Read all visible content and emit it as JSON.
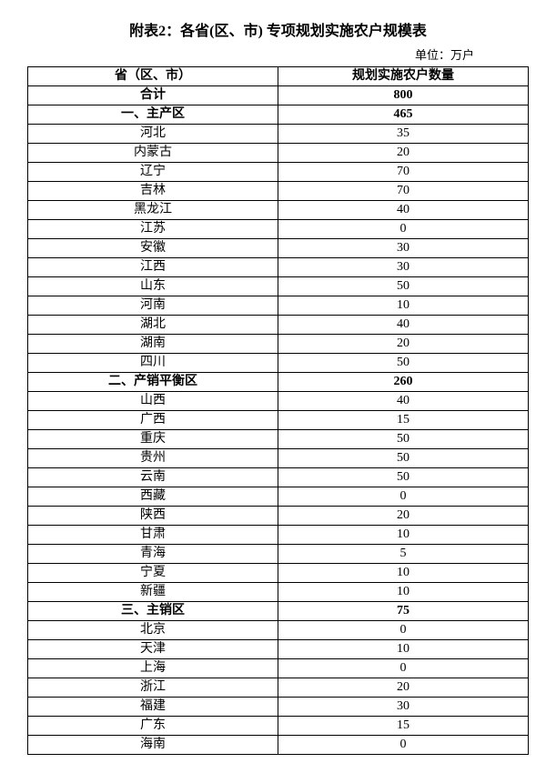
{
  "title": "附表2：各省(区、市) 专项规划实施农户规模表",
  "unit": "单位：万户",
  "header": {
    "col1": "省（区、市）",
    "col2": "规划实施农户数量"
  },
  "rows": [
    {
      "label": "合计",
      "value": "800",
      "bold": true
    },
    {
      "label": "一、主产区",
      "value": "465",
      "bold": true
    },
    {
      "label": "河北",
      "value": "35",
      "bold": false
    },
    {
      "label": "内蒙古",
      "value": "20",
      "bold": false
    },
    {
      "label": "辽宁",
      "value": "70",
      "bold": false
    },
    {
      "label": "吉林",
      "value": "70",
      "bold": false
    },
    {
      "label": "黑龙江",
      "value": "40",
      "bold": false
    },
    {
      "label": "江苏",
      "value": "0",
      "bold": false
    },
    {
      "label": "安徽",
      "value": "30",
      "bold": false
    },
    {
      "label": "江西",
      "value": "30",
      "bold": false
    },
    {
      "label": "山东",
      "value": "50",
      "bold": false
    },
    {
      "label": "河南",
      "value": "10",
      "bold": false
    },
    {
      "label": "湖北",
      "value": "40",
      "bold": false
    },
    {
      "label": "湖南",
      "value": "20",
      "bold": false
    },
    {
      "label": "四川",
      "value": "50",
      "bold": false
    },
    {
      "label": "二、产销平衡区",
      "value": "260",
      "bold": true
    },
    {
      "label": "山西",
      "value": "40",
      "bold": false
    },
    {
      "label": "广西",
      "value": "15",
      "bold": false
    },
    {
      "label": "重庆",
      "value": "50",
      "bold": false
    },
    {
      "label": "贵州",
      "value": "50",
      "bold": false
    },
    {
      "label": "云南",
      "value": "50",
      "bold": false
    },
    {
      "label": "西藏",
      "value": "0",
      "bold": false
    },
    {
      "label": "陕西",
      "value": "20",
      "bold": false
    },
    {
      "label": "甘肃",
      "value": "10",
      "bold": false
    },
    {
      "label": "青海",
      "value": "5",
      "bold": false
    },
    {
      "label": "宁夏",
      "value": "10",
      "bold": false
    },
    {
      "label": "新疆",
      "value": "10",
      "bold": false
    },
    {
      "label": "三、主销区",
      "value": "75",
      "bold": true
    },
    {
      "label": "北京",
      "value": "0",
      "bold": false
    },
    {
      "label": "天津",
      "value": "10",
      "bold": false
    },
    {
      "label": "上海",
      "value": "0",
      "bold": false
    },
    {
      "label": "浙江",
      "value": "20",
      "bold": false
    },
    {
      "label": "福建",
      "value": "30",
      "bold": false
    },
    {
      "label": "广东",
      "value": "15",
      "bold": false
    },
    {
      "label": "海南",
      "value": "0",
      "bold": false
    }
  ]
}
